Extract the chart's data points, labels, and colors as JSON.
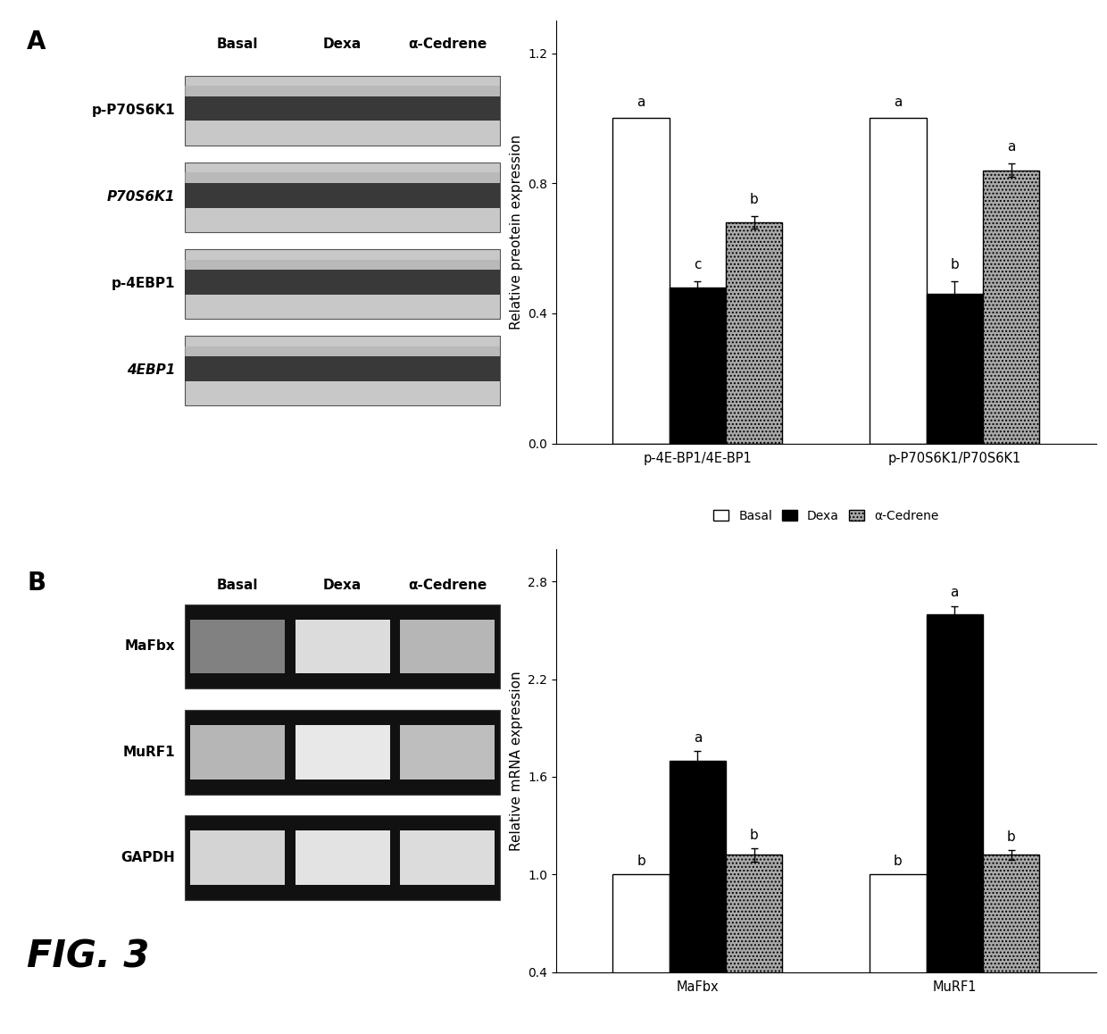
{
  "panel_A": {
    "title_label": "A",
    "blot_labels": [
      "p-P70S6K1",
      "P70S6K1",
      "p-4EBP1",
      "4EBP1"
    ],
    "blot_header": [
      "Basal",
      "Dexa",
      "α-Cedrene"
    ],
    "bar_groups": [
      "p-4E-BP1/4E-BP1",
      "p-P70S6K1/P70S6K1"
    ],
    "basal_values": [
      1.0,
      1.0
    ],
    "dexa_values": [
      0.48,
      0.46
    ],
    "acedrene_values": [
      0.68,
      0.84
    ],
    "basal_err": [
      0.0,
      0.0
    ],
    "dexa_err": [
      0.02,
      0.04
    ],
    "acedrene_err": [
      0.02,
      0.02
    ],
    "basal_labels": [
      "a",
      "a"
    ],
    "dexa_labels": [
      "c",
      "b"
    ],
    "acedrene_labels": [
      "b",
      "a"
    ],
    "ylabel": "Relative preotein expression",
    "ylim": [
      0.0,
      1.3
    ],
    "yticks": [
      0.0,
      0.4,
      0.8,
      1.2
    ],
    "legend_labels": [
      "Basal",
      "Dexa",
      "α-Cedrene"
    ],
    "bar_colors": [
      "white",
      "black",
      "#aaaaaa"
    ]
  },
  "panel_B": {
    "title_label": "B",
    "blot_labels": [
      "MaFbx",
      "MuRF1",
      "GAPDH"
    ],
    "blot_header": [
      "Basal",
      "Dexa",
      "α-Cedrene"
    ],
    "bar_groups": [
      "MaFbx",
      "MuRF1"
    ],
    "basal_values": [
      1.0,
      1.0
    ],
    "dexa_values": [
      1.7,
      2.6
    ],
    "acedrene_values": [
      1.12,
      1.12
    ],
    "basal_err": [
      0.0,
      0.0
    ],
    "dexa_err": [
      0.06,
      0.05
    ],
    "acedrene_err": [
      0.04,
      0.03
    ],
    "basal_labels": [
      "b",
      "b"
    ],
    "dexa_labels": [
      "a",
      "a"
    ],
    "acedrene_labels": [
      "b",
      "b"
    ],
    "ylabel": "Relative mRNA expression",
    "ylim": [
      0.4,
      3.0
    ],
    "yticks": [
      0.4,
      1.0,
      1.6,
      2.2,
      2.8
    ],
    "legend_labels": [
      "Basal",
      "Dexa",
      "α-Cedrene"
    ],
    "bar_colors": [
      "white",
      "black",
      "#aaaaaa"
    ]
  },
  "fig_label": "FIG. 3",
  "background_color": "white"
}
